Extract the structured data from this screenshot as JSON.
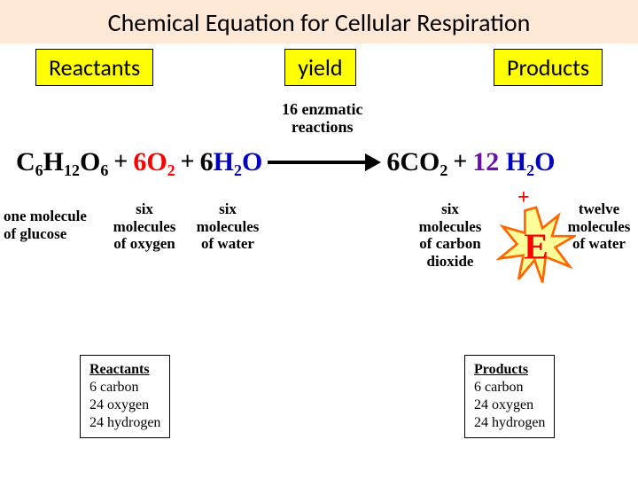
{
  "title": "Chemical Equation for Cellular Respiration",
  "labels": {
    "reactants": "Reactants",
    "yield": "yield",
    "products": "Products"
  },
  "enzmatic": "16 enzmatic\nreactions",
  "equation": {
    "glucose": {
      "formula_parts": [
        "C",
        "6",
        "H",
        "12",
        "O",
        "6"
      ],
      "color": "#000000"
    },
    "oxygen": {
      "coef": "6",
      "formula_parts": [
        "O",
        "2"
      ],
      "color": "#ff0000"
    },
    "water_l": {
      "coef": "6",
      "formula_parts": [
        "H",
        "2",
        "O"
      ],
      "color": "#0000c0"
    },
    "co2": {
      "coef": "6",
      "formula_parts": [
        "CO",
        "2"
      ],
      "color": "#000000"
    },
    "water_r": {
      "coef": "12",
      "coef_color": "#6a0dad",
      "formula_parts": [
        "H",
        "2",
        "O"
      ],
      "color": "#0000c0"
    }
  },
  "descriptions": {
    "glucose": "one molecule\nof glucose",
    "oxygen": "six\nmolecules\nof oxygen",
    "water_l": "six\nmolecules\nof water",
    "co2": "six\nmolecules\nof carbon\ndioxide",
    "water_r": "twelve\nmolecules\nof water"
  },
  "energy": {
    "letter": "E",
    "fill": "#ffff99",
    "stroke": "#ff6600",
    "letter_color": "#ff0000"
  },
  "tally": {
    "reactants": {
      "title": "Reactants",
      "lines": [
        "6 carbon",
        "24 oxygen",
        "24 hydrogen"
      ]
    },
    "products": {
      "title": "Products",
      "lines": [
        "6 carbon",
        "24 oxygen",
        "24 hydrogen"
      ]
    }
  },
  "colors": {
    "title_bg": "#ffe9d6",
    "yellow": "#ffff00",
    "black": "#000000",
    "red": "#ff0000",
    "blue": "#0000c0",
    "purple": "#6a0dad"
  }
}
